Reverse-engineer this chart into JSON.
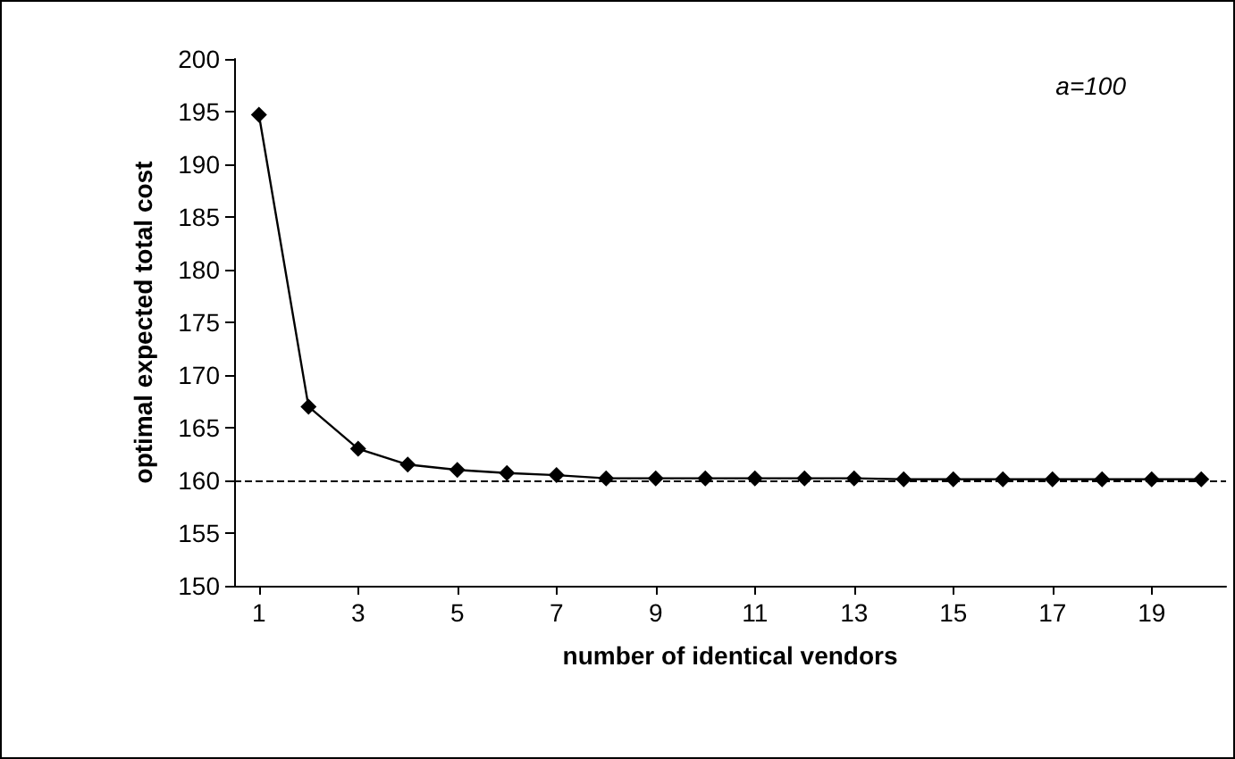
{
  "chart_data": {
    "type": "line",
    "xlabel": "number of identical vendors",
    "ylabel": "optimal expected total cost",
    "x": [
      1,
      2,
      3,
      4,
      5,
      6,
      7,
      8,
      9,
      10,
      11,
      12,
      13,
      14,
      15,
      16,
      17,
      18,
      19,
      20
    ],
    "series": [
      {
        "color": "#000000",
        "values": [
          194.7,
          167.0,
          163.0,
          161.5,
          161.0,
          160.7,
          160.5,
          160.2,
          160.2,
          160.2,
          160.2,
          160.2,
          160.2,
          160.1,
          160.1,
          160.1,
          160.1,
          160.1,
          160.1,
          160.1
        ]
      }
    ],
    "xlim": [
      0.5,
      20.5
    ],
    "xticks": [
      1,
      3,
      5,
      7,
      9,
      11,
      13,
      15,
      17,
      19
    ],
    "ylim": [
      150,
      200
    ],
    "yticks": [
      150,
      155,
      160,
      165,
      170,
      175,
      180,
      185,
      190,
      195,
      200
    ],
    "ref_lines": [
      {
        "axis": "y",
        "value": 160,
        "line_style": "dashed",
        "color": "#000000"
      }
    ],
    "annotations": [
      "a=100"
    ],
    "marker": "diamond",
    "line_style": "solid",
    "grid": false
  }
}
